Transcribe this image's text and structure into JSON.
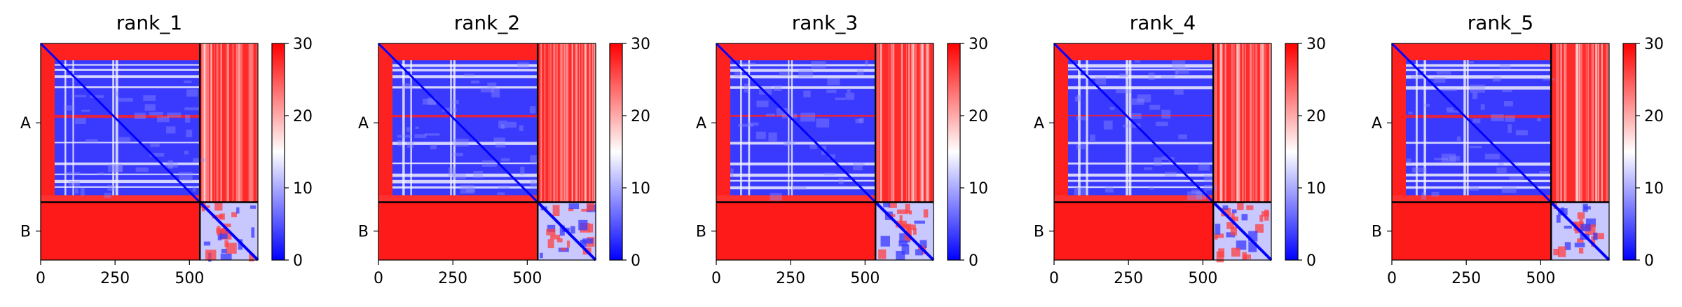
{
  "chart_data": {
    "type": "heatmap",
    "colormap": {
      "low": "#0000ff",
      "mid": "#ffffff",
      "high": "#ff0000"
    },
    "clim": [
      0,
      30
    ],
    "colorbar_ticks": [
      "0",
      "10",
      "20",
      "30"
    ],
    "x_ticks": [
      {
        "value": 0,
        "label": "0"
      },
      {
        "value": 250,
        "label": "250"
      },
      {
        "value": 500,
        "label": "500"
      }
    ],
    "xlim": [
      0,
      730
    ],
    "ylim": [
      0,
      730
    ],
    "chains": [
      {
        "label": "A",
        "start": 0,
        "end": 535
      },
      {
        "label": "B",
        "start": 535,
        "end": 730
      }
    ],
    "panels": [
      {
        "title": "rank_1"
      },
      {
        "title": "rank_2"
      },
      {
        "title": "rank_3"
      },
      {
        "title": "rank_4"
      },
      {
        "title": "rank_5"
      }
    ]
  }
}
